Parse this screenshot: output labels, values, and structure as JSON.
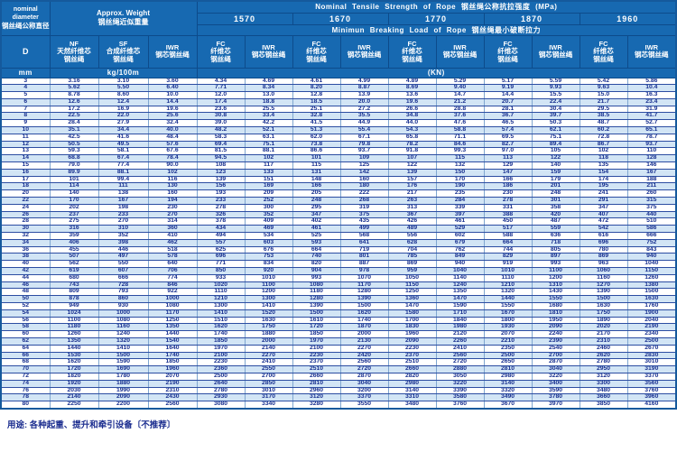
{
  "header": {
    "nominal_diameter_en": "nominal diameter",
    "nominal_diameter_zh": "钢丝绳公称直径",
    "approx_weight_en": "Approx. Weight",
    "approx_weight_zh": "钢丝绳近似重量",
    "tensile_title_en": "Nominal Tensile Strength of Rope",
    "tensile_title_zh": "钢丝绳公称抗拉强度",
    "tensile_unit": "(MPa)",
    "grades": [
      "1570",
      "1670",
      "1770",
      "1870",
      "1960"
    ],
    "breaking_title_en": "Minimun Breaking Load of Rope",
    "breaking_title_zh": "钢丝绳最小破断拉力",
    "unit_mm": "mm",
    "unit_kg": "kg/100m",
    "unit_kn": "(KN)"
  },
  "columns": [
    {
      "key": "d",
      "en": "D",
      "zh": []
    },
    {
      "key": "nf",
      "en": "NF",
      "zh": [
        "天然纤维芯",
        "钢丝绳"
      ]
    },
    {
      "key": "sf",
      "en": "SF",
      "zh": [
        "合成纤维芯",
        "钢丝绳"
      ]
    },
    {
      "key": "iwr",
      "en": "IWR",
      "zh": [
        "钢芯钢丝绳"
      ]
    },
    {
      "key": "fc-1570",
      "en": "FC",
      "zh": [
        "纤维芯",
        "钢丝绳"
      ]
    },
    {
      "key": "iwr-1570",
      "en": "IWR",
      "zh": [
        "钢芯钢丝绳"
      ]
    },
    {
      "key": "fc-1670",
      "en": "FC",
      "zh": [
        "纤维芯",
        "钢丝绳"
      ]
    },
    {
      "key": "iwr-1670",
      "en": "IWR",
      "zh": [
        "钢芯钢丝绳"
      ]
    },
    {
      "key": "fc-1770",
      "en": "FC",
      "zh": [
        "纤维芯",
        "钢丝绳"
      ]
    },
    {
      "key": "iwr-1770",
      "en": "IWR",
      "zh": [
        "钢芯钢丝绳"
      ]
    },
    {
      "key": "fc-1870",
      "en": "FC",
      "zh": [
        "纤维芯",
        "钢丝绳"
      ]
    },
    {
      "key": "iwr-1870",
      "en": "IWR",
      "zh": [
        "钢芯钢丝绳"
      ]
    },
    {
      "key": "fc-1960",
      "en": "FC",
      "zh": [
        "纤维芯",
        "钢丝绳"
      ]
    },
    {
      "key": "iwr-1960",
      "en": "IWR",
      "zh": [
        "钢芯钢丝绳"
      ]
    }
  ],
  "table": {
    "rows": [
      [
        "3",
        "3.16",
        "3.10",
        "3.60",
        "4.34",
        "4.69",
        "4.61",
        "4.99",
        "4.89",
        "5.29",
        "5.17",
        "5.59",
        "5.42",
        "5.86"
      ],
      [
        "4",
        "5.62",
        "5.50",
        "6.40",
        "7.71",
        "8.34",
        "8.20",
        "8.87",
        "8.69",
        "9.40",
        "9.19",
        "9.93",
        "9.63",
        "10.4"
      ],
      [
        "5",
        "8.78",
        "8.60",
        "10.0",
        "12.0",
        "13.0",
        "12.8",
        "13.9",
        "13.6",
        "14.7",
        "14.4",
        "15.5",
        "15.0",
        "16.3"
      ],
      [
        "6",
        "12.6",
        "12.4",
        "14.4",
        "17.4",
        "18.8",
        "18.5",
        "20.0",
        "19.6",
        "21.2",
        "20.7",
        "22.4",
        "21.7",
        "23.4"
      ],
      [
        "7",
        "17.2",
        "16.9",
        "19.6",
        "23.6",
        "25.5",
        "25.1",
        "27.2",
        "26.6",
        "28.8",
        "28.1",
        "30.4",
        "29.5",
        "31.9"
      ],
      [
        "8",
        "22.5",
        "22.0",
        "25.6",
        "30.8",
        "33.4",
        "32.8",
        "35.5",
        "34.8",
        "37.6",
        "36.7",
        "39.7",
        "38.5",
        "41.7"
      ],
      [
        "9",
        "28.4",
        "27.9",
        "32.4",
        "39.0",
        "42.2",
        "41.5",
        "44.9",
        "44.0",
        "47.6",
        "46.5",
        "50.3",
        "48.7",
        "52.7"
      ],
      [
        "10",
        "35.1",
        "34.4",
        "40.0",
        "48.2",
        "52.1",
        "51.3",
        "55.4",
        "54.3",
        "58.8",
        "57.4",
        "62.1",
        "60.2",
        "65.1"
      ],
      [
        "11",
        "42.5",
        "41.6",
        "48.4",
        "58.3",
        "63.1",
        "62.0",
        "67.1",
        "65.8",
        "71.1",
        "69.5",
        "75.1",
        "72.8",
        "78.7"
      ],
      [
        "12",
        "50.5",
        "49.5",
        "57.6",
        "69.4",
        "75.1",
        "73.8",
        "79.8",
        "78.2",
        "84.6",
        "82.7",
        "89.4",
        "86.7",
        "93.7"
      ],
      [
        "13",
        "59.3",
        "58.1",
        "67.6",
        "81.5",
        "88.1",
        "86.6",
        "93.7",
        "91.8",
        "99.3",
        "97.0",
        "105",
        "102",
        "110"
      ],
      [
        "14",
        "68.8",
        "67.4",
        "78.4",
        "94.5",
        "102",
        "101",
        "109",
        "107",
        "115",
        "113",
        "122",
        "118",
        "128"
      ],
      [
        "15",
        "79.0",
        "77.4",
        "90.0",
        "108",
        "117",
        "115",
        "125",
        "122",
        "132",
        "129",
        "140",
        "135",
        "146"
      ],
      [
        "16",
        "89.9",
        "88.1",
        "102",
        "123",
        "133",
        "131",
        "142",
        "139",
        "150",
        "147",
        "159",
        "154",
        "167"
      ],
      [
        "17",
        "101",
        "99.4",
        "116",
        "139",
        "151",
        "148",
        "160",
        "157",
        "170",
        "166",
        "179",
        "174",
        "188"
      ],
      [
        "18",
        "114",
        "111",
        "130",
        "156",
        "169",
        "166",
        "180",
        "176",
        "190",
        "186",
        "201",
        "195",
        "211"
      ],
      [
        "20",
        "140",
        "138",
        "160",
        "193",
        "209",
        "205",
        "222",
        "217",
        "235",
        "230",
        "248",
        "241",
        "260"
      ],
      [
        "22",
        "170",
        "167",
        "194",
        "233",
        "252",
        "248",
        "268",
        "263",
        "284",
        "278",
        "301",
        "291",
        "315"
      ],
      [
        "24",
        "202",
        "198",
        "230",
        "278",
        "300",
        "295",
        "319",
        "313",
        "339",
        "331",
        "358",
        "347",
        "375"
      ],
      [
        "26",
        "237",
        "233",
        "270",
        "326",
        "352",
        "347",
        "375",
        "367",
        "397",
        "388",
        "420",
        "407",
        "440"
      ],
      [
        "28",
        "275",
        "270",
        "314",
        "378",
        "409",
        "402",
        "435",
        "426",
        "461",
        "450",
        "487",
        "472",
        "510"
      ],
      [
        "30",
        "316",
        "310",
        "360",
        "434",
        "469",
        "461",
        "499",
        "489",
        "529",
        "517",
        "559",
        "542",
        "586"
      ],
      [
        "32",
        "359",
        "352",
        "410",
        "494",
        "534",
        "525",
        "568",
        "556",
        "602",
        "588",
        "636",
        "616",
        "666"
      ],
      [
        "34",
        "406",
        "398",
        "462",
        "557",
        "603",
        "593",
        "641",
        "628",
        "679",
        "664",
        "718",
        "696",
        "752"
      ],
      [
        "36",
        "455",
        "446",
        "518",
        "625",
        "676",
        "664",
        "719",
        "704",
        "762",
        "744",
        "805",
        "780",
        "843"
      ],
      [
        "38",
        "507",
        "497",
        "578",
        "696",
        "753",
        "740",
        "801",
        "785",
        "849",
        "829",
        "897",
        "869",
        "940"
      ],
      [
        "40",
        "562",
        "550",
        "640",
        "771",
        "834",
        "820",
        "887",
        "869",
        "940",
        "919",
        "993",
        "963",
        "1040"
      ],
      [
        "42",
        "619",
        "607",
        "706",
        "850",
        "920",
        "904",
        "978",
        "959",
        "1040",
        "1010",
        "1100",
        "1060",
        "1150"
      ],
      [
        "44",
        "680",
        "666",
        "774",
        "933",
        "1010",
        "993",
        "1070",
        "1050",
        "1140",
        "1110",
        "1200",
        "1160",
        "1260"
      ],
      [
        "46",
        "743",
        "728",
        "846",
        "1020",
        "1100",
        "1080",
        "1170",
        "1150",
        "1240",
        "1210",
        "1310",
        "1270",
        "1380"
      ],
      [
        "48",
        "809",
        "793",
        "922",
        "1110",
        "1200",
        "1180",
        "1280",
        "1250",
        "1350",
        "1320",
        "1430",
        "1390",
        "1500"
      ],
      [
        "50",
        "878",
        "860",
        "1000",
        "1210",
        "1300",
        "1280",
        "1390",
        "1360",
        "1470",
        "1440",
        "1550",
        "1500",
        "1630"
      ],
      [
        "52",
        "949",
        "930",
        "1080",
        "1300",
        "1410",
        "1390",
        "1500",
        "1470",
        "1590",
        "1550",
        "1680",
        "1630",
        "1760"
      ],
      [
        "54",
        "1024",
        "1000",
        "1170",
        "1410",
        "1520",
        "1500",
        "1620",
        "1580",
        "1710",
        "1670",
        "1810",
        "1750",
        "1900"
      ],
      [
        "56",
        "1100",
        "1080",
        "1250",
        "1510",
        "1630",
        "1610",
        "1740",
        "1700",
        "1840",
        "1800",
        "1950",
        "1890",
        "2040"
      ],
      [
        "58",
        "1180",
        "1160",
        "1350",
        "1620",
        "1750",
        "1720",
        "1870",
        "1830",
        "1980",
        "1930",
        "2090",
        "2020",
        "2190"
      ],
      [
        "60",
        "1260",
        "1240",
        "1440",
        "1740",
        "1880",
        "1850",
        "2000",
        "1960",
        "2120",
        "2070",
        "2240",
        "2170",
        "2340"
      ],
      [
        "62",
        "1350",
        "1320",
        "1540",
        "1850",
        "2000",
        "1970",
        "2130",
        "2090",
        "2260",
        "2210",
        "2390",
        "2310",
        "2500"
      ],
      [
        "64",
        "1440",
        "1410",
        "1640",
        "1970",
        "2140",
        "2100",
        "2270",
        "2230",
        "2410",
        "2350",
        "2540",
        "2460",
        "2670"
      ],
      [
        "66",
        "1530",
        "1500",
        "1740",
        "2100",
        "2270",
        "2230",
        "2420",
        "2370",
        "2560",
        "2500",
        "2700",
        "2620",
        "2830"
      ],
      [
        "68",
        "1620",
        "1590",
        "1850",
        "2230",
        "2410",
        "2370",
        "2560",
        "2510",
        "2720",
        "2650",
        "2870",
        "2780",
        "3010"
      ],
      [
        "70",
        "1720",
        "1690",
        "1960",
        "2360",
        "2550",
        "2510",
        "2720",
        "2660",
        "2880",
        "2810",
        "3040",
        "2950",
        "3190"
      ],
      [
        "72",
        "1820",
        "1780",
        "2070",
        "2500",
        "2700",
        "2660",
        "2870",
        "2820",
        "3050",
        "2980",
        "3220",
        "3120",
        "3370"
      ],
      [
        "74",
        "1920",
        "1880",
        "2190",
        "2640",
        "2850",
        "2810",
        "3040",
        "2980",
        "3220",
        "3140",
        "3400",
        "3300",
        "3560"
      ],
      [
        "76",
        "2030",
        "1990",
        "2310",
        "2780",
        "3010",
        "2960",
        "3200",
        "3140",
        "3390",
        "3320",
        "3590",
        "3480",
        "3760"
      ],
      [
        "78",
        "2140",
        "2090",
        "2430",
        "2930",
        "3170",
        "3120",
        "3370",
        "3310",
        "3580",
        "3490",
        "3780",
        "3660",
        "3960"
      ],
      [
        "80",
        "2250",
        "2200",
        "2560",
        "3080",
        "3340",
        "3280",
        "3550",
        "3480",
        "3760",
        "3670",
        "3970",
        "3850",
        "4160"
      ]
    ]
  },
  "note": "用途: 各种起重、提升和牵引设备〔不推荐〕",
  "colors": {
    "header_blue": "#1769b1",
    "header_border": "#0d4b8b",
    "row_alt_blue": "#d2e5f5",
    "data_text_navy": "#172f8f",
    "frame_blue": "#15599c"
  }
}
